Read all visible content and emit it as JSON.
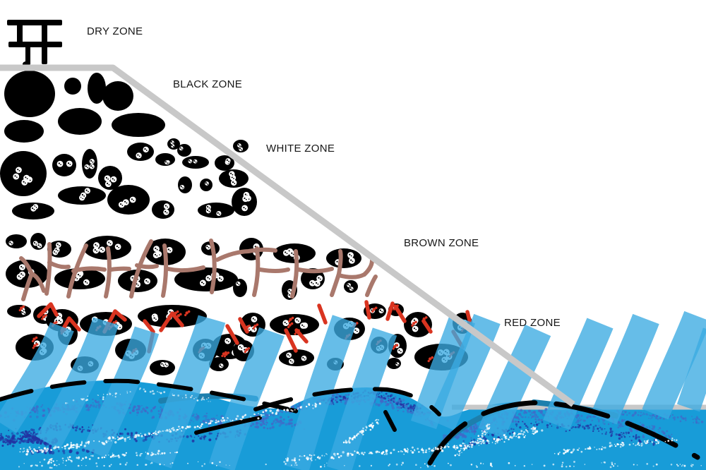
{
  "zones": [
    {
      "id": "dry",
      "label": "DRY ZONE"
    },
    {
      "id": "black",
      "label": "BLACK ZONE"
    },
    {
      "id": "white",
      "label": "WHITE ZONE"
    },
    {
      "id": "brown",
      "label": "BROWN ZONE"
    },
    {
      "id": "red",
      "label": "RED ZONE"
    }
  ],
  "palette": {
    "ink": "#000000",
    "slope_gray": "#C8C8C8",
    "rock_black": "#000000",
    "barnacle_white": "#FFFFFF",
    "rockweed_brown": "#A9786C",
    "red_algae": "#D93420",
    "splash_blue": "#3BAAE1",
    "sea_blue": "#189CD8",
    "spray_blue": "#4169C8",
    "spray_navy": "#2233A2",
    "crest_teal": "#1D7FAD",
    "foam_white": "#FFFFFF"
  }
}
